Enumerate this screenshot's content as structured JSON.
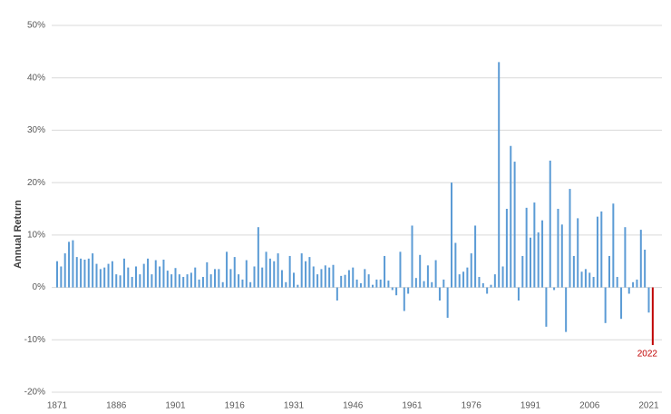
{
  "chart_data": {
    "type": "bar",
    "y_label": "Annual Return",
    "annotation": "2022",
    "categories": [
      "1871",
      null,
      null,
      null,
      null,
      null,
      null,
      null,
      null,
      null,
      null,
      null,
      null,
      null,
      null,
      "1886",
      null,
      null,
      null,
      null,
      null,
      null,
      null,
      null,
      null,
      null,
      null,
      null,
      null,
      null,
      "1901",
      null,
      null,
      null,
      null,
      null,
      null,
      null,
      null,
      null,
      null,
      null,
      null,
      null,
      null,
      "1916",
      null,
      null,
      null,
      null,
      null,
      null,
      null,
      null,
      null,
      null,
      null,
      null,
      null,
      null,
      "1931",
      null,
      null,
      null,
      null,
      null,
      null,
      null,
      null,
      null,
      null,
      null,
      null,
      null,
      null,
      "1946",
      null,
      null,
      null,
      null,
      null,
      null,
      null,
      null,
      null,
      null,
      null,
      null,
      null,
      null,
      "1961",
      null,
      null,
      null,
      null,
      null,
      null,
      null,
      null,
      null,
      null,
      null,
      null,
      null,
      null,
      "1976",
      null,
      null,
      null,
      null,
      null,
      null,
      null,
      null,
      null,
      null,
      null,
      null,
      null,
      null,
      "1991",
      null,
      null,
      null,
      null,
      null,
      null,
      null,
      null,
      null,
      null,
      null,
      null,
      null,
      null,
      "2006",
      null,
      null,
      null,
      null,
      null,
      null,
      null,
      null,
      null,
      null,
      null,
      null,
      null,
      null,
      "2021",
      null
    ],
    "values": [
      5,
      4,
      6.5,
      8.7,
      9,
      5.8,
      5.5,
      5.3,
      5.5,
      6.5,
      4.5,
      3.5,
      3.8,
      4.5,
      5,
      2.5,
      2.3,
      5.5,
      3.8,
      2,
      4,
      2.5,
      4.5,
      5.5,
      2.5,
      5.2,
      4,
      5.3,
      3.2,
      2.5,
      3.7,
      2.5,
      2,
      2.5,
      2.8,
      3.8,
      1.5,
      2,
      4.8,
      2.5,
      3.5,
      3.5,
      1,
      6.8,
      3.5,
      5.8,
      2.5,
      1.5,
      5.2,
      1,
      4,
      11.5,
      3.8,
      6.8,
      5.5,
      5,
      6.5,
      3.3,
      1,
      6,
      2.8,
      0.5,
      6.5,
      5,
      5.8,
      4,
      2.5,
      3.5,
      4.2,
      3.8,
      4.3,
      -2.5,
      2.2,
      2.4,
      3.3,
      3.8,
      1.5,
      0.8,
      3.5,
      2.5,
      0.5,
      1.5,
      1.5,
      6,
      1.3,
      -0.5,
      -1.5,
      6.8,
      -4.5,
      -1.2,
      11.8,
      1.8,
      6.2,
      1.2,
      4.2,
      1,
      5.2,
      -2.5,
      1.5,
      -5.8,
      20,
      8.5,
      2.5,
      3,
      3.8,
      6.5,
      11.8,
      2,
      0.8,
      -1.2,
      0.5,
      2.5,
      43,
      4,
      15,
      27,
      24,
      -2.5,
      6,
      15.2,
      9.5,
      16.2,
      10.5,
      12.8,
      -7.5,
      24.2,
      -0.5,
      15,
      12,
      -8.5,
      18.8,
      6,
      13.2,
      3,
      3.5,
      2.8,
      2,
      13.5,
      14.5,
      -6.8,
      6,
      16,
      2,
      -6,
      11.5,
      -1.2,
      1,
      1.5,
      11,
      7.2,
      -4.8,
      -11
    ],
    "color": "#5b9bd5",
    "highlight_color": "#c00000",
    "ylim": [
      -20,
      50
    ],
    "yticks": [
      {
        "value": -20,
        "label": "-20%"
      },
      {
        "value": -10,
        "label": "-10%"
      },
      {
        "value": 0,
        "label": "0%"
      },
      {
        "value": 10,
        "label": "10%"
      },
      {
        "value": 20,
        "label": "20%"
      },
      {
        "value": 30,
        "label": "30%"
      },
      {
        "value": 40,
        "label": "40%"
      },
      {
        "value": 50,
        "label": "50%"
      }
    ],
    "grid": true
  }
}
